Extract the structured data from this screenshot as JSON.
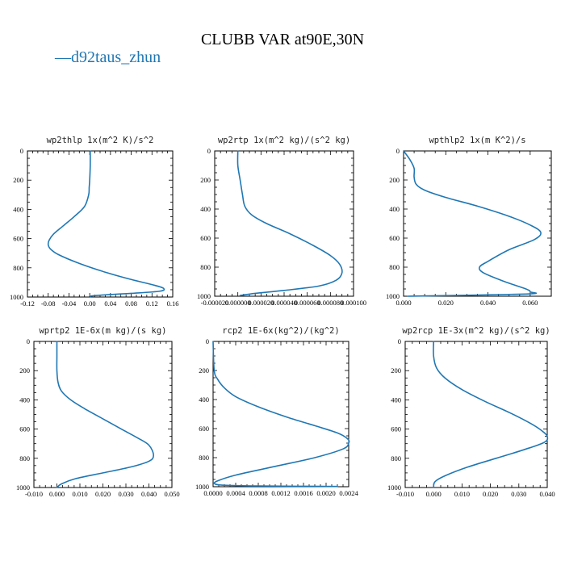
{
  "figure": {
    "title": "CLUBB VAR at90E,30N",
    "legend": {
      "glyph": "—",
      "label": "d92taus_zhun",
      "color": "#1f77b4"
    }
  },
  "chart_data": [
    {
      "type": "line",
      "title": "wp2thlp   1x(m^2 K)/s^2",
      "xlim": [
        -0.12,
        0.16
      ],
      "ylim": [
        1000,
        0
      ],
      "xticks": [
        -0.12,
        -0.08,
        -0.04,
        0.0,
        0.04,
        0.08,
        0.12,
        0.16
      ],
      "xtick_labels": [
        "-0.12",
        "-0.08",
        "-0.04",
        "0.00",
        "0.04",
        "0.08",
        "0.12",
        "0.16"
      ],
      "yticks": [
        0,
        200,
        400,
        600,
        800,
        1000
      ],
      "ytick_labels": [
        "0",
        "200",
        "400",
        "600",
        "800",
        "1000"
      ],
      "series": [
        {
          "color": "#1f77b4",
          "x": [
            0.001,
            0.001,
            0.0,
            -0.001,
            -0.002,
            -0.01,
            -0.03,
            -0.05,
            -0.07,
            -0.078,
            -0.08,
            -0.076,
            -0.06,
            -0.02,
            0.03,
            0.08,
            0.12,
            0.142,
            0.135,
            0.08,
            0.03,
            0.005,
            0.002
          ],
          "y": [
            0,
            100,
            200,
            250,
            300,
            380,
            450,
            510,
            570,
            610,
            640,
            670,
            710,
            770,
            830,
            880,
            915,
            940,
            960,
            975,
            985,
            992,
            997
          ]
        }
      ]
    },
    {
      "type": "line",
      "title": "wp2rtp  1x(m^2 kg)/(s^2 kg)",
      "xlim": [
        -2e-05,
        0.0001
      ],
      "ylim": [
        1000,
        0
      ],
      "xticks": [
        -2e-05,
        0.0,
        2e-05,
        4e-05,
        6e-05,
        8e-05,
        0.0001
      ],
      "xtick_labels": [
        "-0.000020",
        "0.000000",
        "0.000020",
        "0.000040",
        "0.000060",
        "0.000080",
        "0.000100"
      ],
      "yticks": [
        0,
        200,
        400,
        600,
        800,
        1000
      ],
      "ytick_labels": [
        "0",
        "200",
        "400",
        "600",
        "800",
        "1000"
      ],
      "series": [
        {
          "color": "#1f77b4",
          "x": [
            0.0,
            0.0,
            2e-06,
            4e-06,
            6e-06,
            1.2e-05,
            2.5e-05,
            4.5e-05,
            6.5e-05,
            8e-05,
            8.8e-05,
            9e-05,
            8.5e-05,
            7e-05,
            4e-05,
            1.5e-05,
            2e-06
          ],
          "y": [
            0,
            100,
            200,
            300,
            380,
            440,
            500,
            570,
            650,
            720,
            780,
            840,
            890,
            930,
            960,
            980,
            995
          ]
        }
      ]
    },
    {
      "type": "line",
      "title": "wpthlp2  1x(m K^2)/s",
      "xlim": [
        0.0,
        0.07
      ],
      "ylim": [
        1000,
        0
      ],
      "xticks": [
        0.0,
        0.02,
        0.04,
        0.06
      ],
      "xtick_labels": [
        "0.000",
        "0.020",
        "0.040",
        "0.060"
      ],
      "yticks": [
        0,
        200,
        400,
        600,
        800,
        1000
      ],
      "ytick_labels": [
        "0",
        "200",
        "400",
        "600",
        "800",
        "1000"
      ],
      "series": [
        {
          "color": "#1f77b4",
          "x": [
            0.0,
            0.003,
            0.005,
            0.005,
            0.006,
            0.01,
            0.02,
            0.035,
            0.05,
            0.06,
            0.065,
            0.062,
            0.05,
            0.04,
            0.036,
            0.038,
            0.048,
            0.058,
            0.06,
            0.058,
            0.002
          ],
          "y": [
            0,
            60,
            120,
            180,
            230,
            270,
            320,
            380,
            450,
            510,
            560,
            610,
            680,
            760,
            800,
            840,
            900,
            950,
            970,
            985,
            1000
          ]
        }
      ]
    },
    {
      "type": "line",
      "title": "wprtp2  1E-6x(m kg)/(s kg)",
      "xlim": [
        -0.01,
        0.05
      ],
      "ylim": [
        1000,
        0
      ],
      "xticks": [
        -0.01,
        0.0,
        0.01,
        0.02,
        0.03,
        0.04,
        0.05
      ],
      "xtick_labels": [
        "-0.010",
        "0.000",
        "0.010",
        "0.020",
        "0.030",
        "0.040",
        "0.050"
      ],
      "yticks": [
        0,
        200,
        400,
        600,
        800,
        1000
      ],
      "ytick_labels": [
        "0",
        "200",
        "400",
        "600",
        "800",
        "1000"
      ],
      "series": [
        {
          "color": "#1f77b4",
          "x": [
            0.0,
            0.0,
            0.0,
            0.0005,
            0.002,
            0.006,
            0.012,
            0.02,
            0.028,
            0.035,
            0.04,
            0.042,
            0.04,
            0.032,
            0.02,
            0.008,
            0.002,
            0.0
          ],
          "y": [
            0,
            100,
            200,
            280,
            340,
            400,
            460,
            530,
            600,
            660,
            710,
            780,
            820,
            860,
            900,
            940,
            975,
            1000
          ]
        }
      ]
    },
    {
      "type": "line",
      "title": "rcp2  1E-6x(kg^2)/(kg^2)",
      "xlim": [
        0.0,
        0.0024
      ],
      "ylim": [
        1000,
        0
      ],
      "xticks": [
        0.0,
        0.0004,
        0.0008,
        0.0012,
        0.0016,
        0.002,
        0.0024
      ],
      "xtick_labels": [
        "0.0000",
        "0.0004",
        "0.0008",
        "0.0012",
        "0.0016",
        "0.0020",
        "0.0024"
      ],
      "yticks": [
        0,
        200,
        400,
        600,
        800,
        1000
      ],
      "ytick_labels": [
        "0",
        "200",
        "400",
        "600",
        "800",
        "1000"
      ],
      "series": [
        {
          "color": "#1f77b4",
          "x": [
            0.0,
            2e-05,
            8e-05,
            0.0002,
            0.0004,
            0.0008,
            0.0013,
            0.0018,
            0.0022,
            0.00238,
            0.0024,
            0.0023,
            0.0018,
            0.0011,
            0.0004,
            8e-05,
            3e-05,
            0.0002,
            0.0008,
            0.0022
          ],
          "y": [
            0,
            200,
            260,
            320,
            380,
            450,
            520,
            580,
            630,
            670,
            700,
            740,
            800,
            860,
            920,
            960,
            980,
            990,
            995,
            998
          ]
        }
      ]
    },
    {
      "type": "line",
      "title": "wp2rcp  1E-3x(m^2 kg)/(s^2 kg)",
      "xlim": [
        -0.01,
        0.04
      ],
      "ylim": [
        1000,
        0
      ],
      "xticks": [
        -0.01,
        0.0,
        0.01,
        0.02,
        0.03,
        0.04
      ],
      "xtick_labels": [
        "-0.010",
        "0.000",
        "0.010",
        "0.020",
        "0.030",
        "0.040"
      ],
      "yticks": [
        0,
        200,
        400,
        600,
        800,
        1000
      ],
      "ytick_labels": [
        "0",
        "200",
        "400",
        "600",
        "800",
        "1000"
      ],
      "series": [
        {
          "color": "#1f77b4",
          "x": [
            0.0,
            0.0,
            0.001,
            0.004,
            0.01,
            0.018,
            0.027,
            0.034,
            0.038,
            0.04,
            0.039,
            0.032,
            0.022,
            0.012,
            0.004,
            0.0005,
            0.0
          ],
          "y": [
            0,
            100,
            180,
            250,
            330,
            410,
            490,
            560,
            610,
            650,
            690,
            740,
            800,
            860,
            920,
            960,
            1000
          ]
        }
      ]
    }
  ]
}
